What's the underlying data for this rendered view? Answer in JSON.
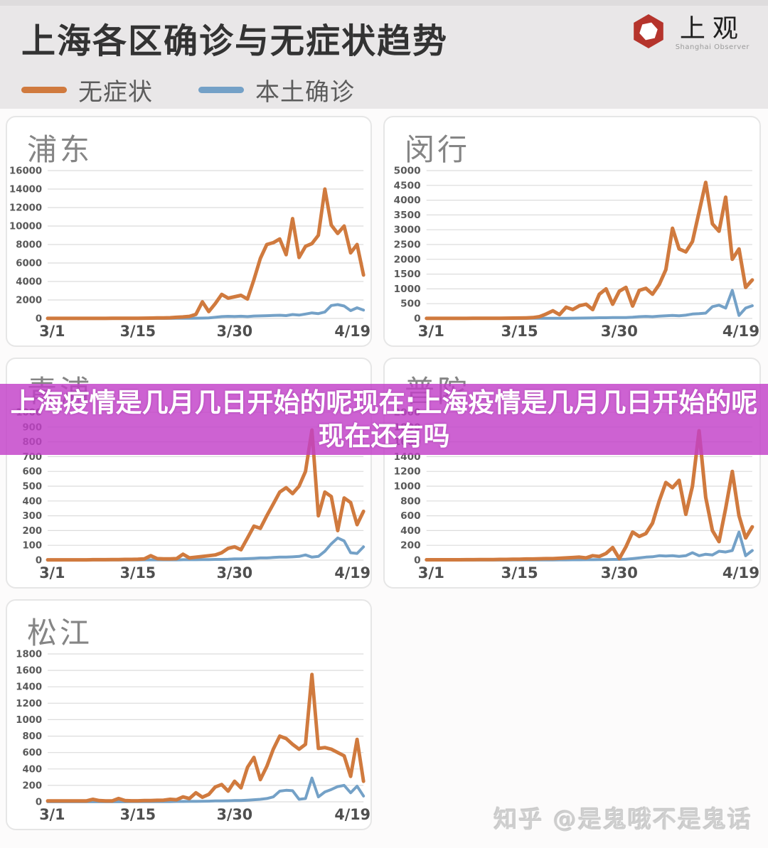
{
  "header": {
    "title": "上海各区确诊与无症状趋势",
    "bg_color": "#e9e7e8",
    "logo": {
      "name_cn": "上观",
      "name_en": "Shanghai Observer",
      "mark_color": "#b5342c"
    }
  },
  "legend": {
    "items": [
      {
        "label": "无症状",
        "color": "#d07a3e"
      },
      {
        "label": "本土确诊",
        "color": "#74a1c7"
      }
    ]
  },
  "overlay": {
    "line1": "上海疫情是几月几日开始的呢现在:上海疫情是几月几日开始的呢",
    "line2": "现在还有吗",
    "bg_color": "#c240c8",
    "bg_opacity": 0.82,
    "text_color": "#ffffff"
  },
  "watermark": {
    "text": "知乎 @是鬼哦不是鬼话"
  },
  "chart_data": [
    {
      "type": "line",
      "district": "浦东",
      "x": [
        "3/1..4/19 daily"
      ],
      "x_ticks": [
        {
          "label": "3/1",
          "day": 0
        },
        {
          "label": "3/15",
          "day": 14
        },
        {
          "label": "3/30",
          "day": 29
        },
        {
          "label": "4/19",
          "day": 49
        }
      ],
      "ylim": [
        0,
        16000
      ],
      "ytick_step": 2000,
      "grid": true,
      "series": [
        {
          "name": "无症状",
          "color": "#d07a3e",
          "values": [
            5,
            5,
            5,
            5,
            5,
            5,
            8,
            8,
            10,
            10,
            12,
            15,
            15,
            20,
            25,
            30,
            40,
            50,
            60,
            80,
            120,
            160,
            220,
            450,
            1800,
            750,
            1600,
            2600,
            2200,
            2350,
            2500,
            2100,
            4200,
            6500,
            8000,
            8200,
            8600,
            6900,
            10800,
            6600,
            7800,
            8100,
            9000,
            14000,
            10100,
            9200,
            10000,
            7100,
            8000,
            4700
          ]
        },
        {
          "name": "本土确诊",
          "color": "#74a1c7",
          "values": [
            2,
            2,
            2,
            2,
            2,
            2,
            2,
            2,
            2,
            2,
            3,
            3,
            3,
            4,
            4,
            5,
            5,
            6,
            8,
            10,
            12,
            15,
            20,
            30,
            40,
            60,
            120,
            200,
            230,
            210,
            240,
            200,
            260,
            280,
            300,
            320,
            350,
            310,
            420,
            360,
            480,
            600,
            520,
            700,
            1400,
            1500,
            1350,
            850,
            1150,
            900
          ]
        }
      ]
    },
    {
      "type": "line",
      "district": "闵行",
      "x_ticks": [
        {
          "label": "3/1",
          "day": 0
        },
        {
          "label": "3/15",
          "day": 14
        },
        {
          "label": "3/30",
          "day": 29
        },
        {
          "label": "4/19",
          "day": 49
        }
      ],
      "ylim": [
        0,
        5000
      ],
      "ytick_step": 500,
      "grid": true,
      "series": [
        {
          "name": "无症状",
          "color": "#d07a3e",
          "values": [
            3,
            3,
            3,
            3,
            3,
            3,
            3,
            4,
            4,
            5,
            6,
            8,
            10,
            12,
            15,
            20,
            30,
            60,
            150,
            260,
            130,
            380,
            300,
            430,
            480,
            300,
            820,
            1000,
            480,
            920,
            1050,
            420,
            950,
            1020,
            820,
            1150,
            1650,
            3050,
            2350,
            2250,
            2600,
            3600,
            4600,
            3200,
            2950,
            4100,
            2000,
            2350,
            1050,
            1300
          ]
        },
        {
          "name": "本土确诊",
          "color": "#74a1c7",
          "values": [
            1,
            1,
            1,
            1,
            1,
            1,
            1,
            1,
            1,
            1,
            2,
            2,
            2,
            3,
            3,
            3,
            4,
            4,
            5,
            5,
            6,
            8,
            10,
            12,
            15,
            20,
            25,
            25,
            30,
            30,
            30,
            40,
            60,
            70,
            60,
            80,
            90,
            100,
            90,
            110,
            150,
            160,
            180,
            400,
            450,
            350,
            950,
            100,
            350,
            430
          ]
        }
      ]
    },
    {
      "type": "line",
      "district": "青浦",
      "x_ticks": [
        {
          "label": "3/1",
          "day": 0
        },
        {
          "label": "3/15",
          "day": 14
        },
        {
          "label": "3/30",
          "day": 29
        },
        {
          "label": "4/19",
          "day": 49
        }
      ],
      "ylim": [
        0,
        1000
      ],
      "ytick_step": 100,
      "grid": true,
      "series": [
        {
          "name": "无症状",
          "color": "#d07a3e",
          "values": [
            2,
            2,
            2,
            2,
            2,
            2,
            2,
            3,
            3,
            3,
            4,
            4,
            5,
            5,
            6,
            8,
            30,
            10,
            8,
            8,
            10,
            40,
            15,
            20,
            25,
            30,
            35,
            50,
            80,
            90,
            70,
            150,
            230,
            215,
            300,
            380,
            460,
            490,
            450,
            500,
            600,
            880,
            300,
            460,
            430,
            200,
            420,
            390,
            240,
            330
          ]
        },
        {
          "name": "本土确诊",
          "color": "#74a1c7",
          "values": [
            1,
            1,
            1,
            1,
            1,
            1,
            1,
            1,
            1,
            1,
            1,
            1,
            1,
            1,
            1,
            2,
            2,
            2,
            2,
            2,
            2,
            3,
            3,
            3,
            4,
            4,
            5,
            5,
            6,
            8,
            8,
            10,
            12,
            15,
            15,
            18,
            20,
            20,
            22,
            25,
            35,
            20,
            25,
            60,
            110,
            150,
            130,
            50,
            45,
            90
          ]
        }
      ]
    },
    {
      "type": "line",
      "district": "普陀",
      "x_ticks": [
        {
          "label": "3/1",
          "day": 0
        },
        {
          "label": "3/15",
          "day": 14
        },
        {
          "label": "3/30",
          "day": 29
        },
        {
          "label": "4/19",
          "day": 49
        }
      ],
      "ylim": [
        0,
        2000
      ],
      "ytick_step": 200,
      "grid": true,
      "series": [
        {
          "name": "无症状",
          "color": "#d07a3e",
          "values": [
            5,
            5,
            5,
            5,
            5,
            5,
            6,
            6,
            8,
            8,
            8,
            10,
            10,
            12,
            12,
            15,
            15,
            18,
            20,
            20,
            25,
            30,
            35,
            40,
            30,
            60,
            50,
            90,
            170,
            20,
            180,
            380,
            320,
            360,
            500,
            800,
            1050,
            980,
            1080,
            620,
            1000,
            1750,
            850,
            400,
            250,
            700,
            1200,
            600,
            300,
            450
          ]
        },
        {
          "name": "本土确诊",
          "color": "#74a1c7",
          "values": [
            1,
            1,
            1,
            1,
            1,
            1,
            1,
            1,
            1,
            1,
            1,
            1,
            1,
            2,
            2,
            2,
            2,
            3,
            3,
            3,
            4,
            4,
            5,
            5,
            6,
            6,
            8,
            8,
            10,
            10,
            12,
            20,
            30,
            40,
            45,
            60,
            55,
            60,
            50,
            60,
            100,
            60,
            80,
            70,
            120,
            110,
            130,
            380,
            60,
            130
          ]
        }
      ]
    },
    {
      "type": "line",
      "district": "松江",
      "x_ticks": [
        {
          "label": "3/1",
          "day": 0
        },
        {
          "label": "3/15",
          "day": 14
        },
        {
          "label": "3/30",
          "day": 29
        },
        {
          "label": "4/19",
          "day": 49
        }
      ],
      "ylim": [
        0,
        1800
      ],
      "ytick_step": 200,
      "grid": true,
      "series": [
        {
          "name": "无症状",
          "color": "#d07a3e",
          "values": [
            10,
            10,
            10,
            10,
            10,
            10,
            10,
            30,
            15,
            10,
            10,
            40,
            15,
            12,
            12,
            15,
            15,
            18,
            20,
            30,
            25,
            60,
            40,
            110,
            55,
            90,
            180,
            210,
            130,
            250,
            170,
            420,
            540,
            270,
            430,
            640,
            800,
            770,
            700,
            640,
            700,
            1550,
            650,
            660,
            640,
            600,
            560,
            310,
            760,
            250
          ]
        },
        {
          "name": "本土确诊",
          "color": "#74a1c7",
          "values": [
            1,
            1,
            1,
            1,
            1,
            1,
            1,
            1,
            1,
            1,
            1,
            1,
            1,
            2,
            2,
            2,
            2,
            3,
            3,
            3,
            4,
            4,
            5,
            5,
            6,
            8,
            10,
            10,
            12,
            15,
            15,
            20,
            25,
            30,
            40,
            60,
            130,
            140,
            135,
            30,
            40,
            290,
            60,
            120,
            150,
            185,
            200,
            110,
            190,
            70
          ]
        }
      ]
    }
  ]
}
